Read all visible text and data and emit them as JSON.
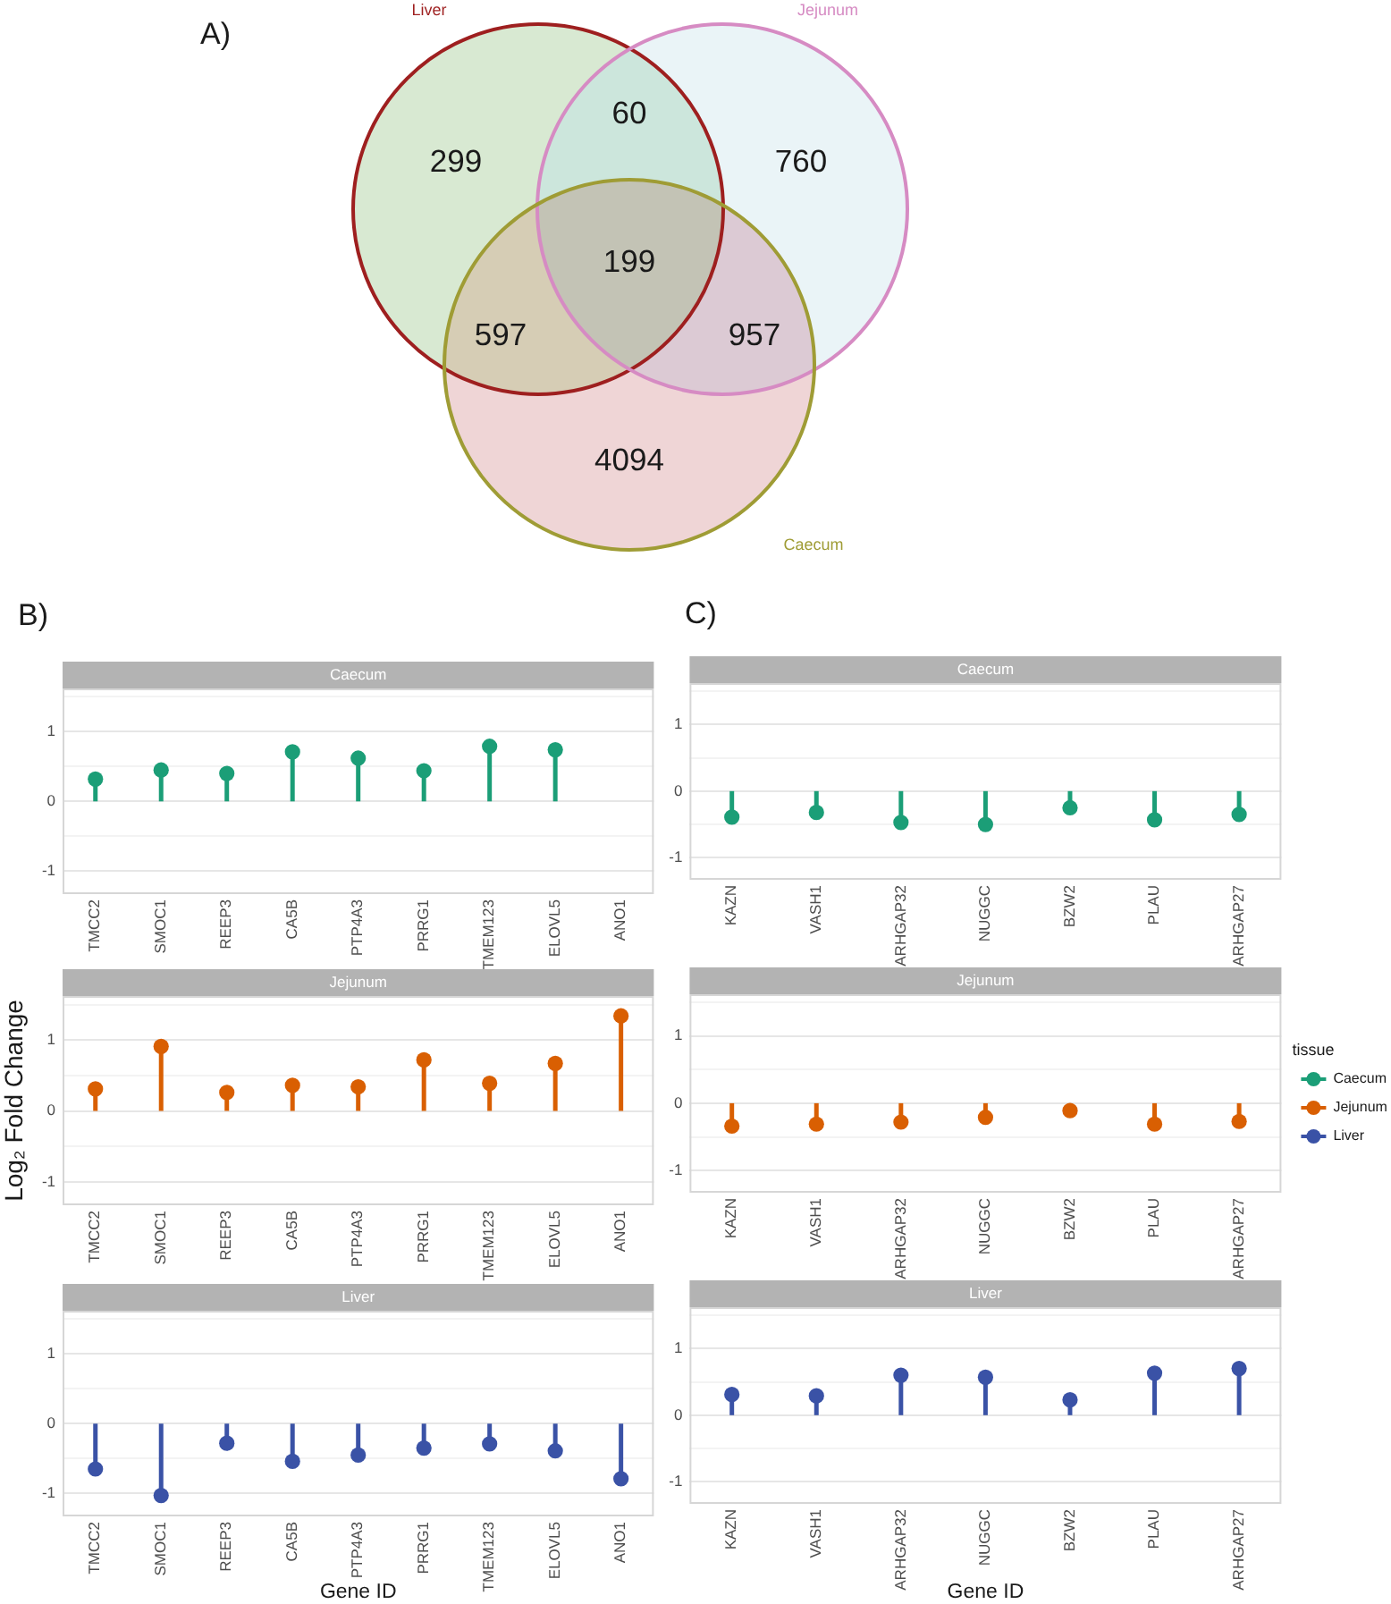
{
  "chart_data": [
    {
      "type": "other",
      "annotations": [
        "A)",
        "299",
        "60",
        "760",
        "199",
        "597",
        "957",
        "4094"
      ],
      "colors": [
        "#d8e9d2",
        "#cce6dc",
        "#eaf4f7",
        "#c3c3b5",
        "#d6cdb5",
        "#dccad4",
        "#efd5d6"
      ],
      "series": [
        {
          "name": "Liver",
          "color": "#9e1f1f"
        },
        {
          "name": "Jejunum",
          "color": "#d68bc3"
        },
        {
          "name": "Caecum",
          "color": "#9f9c35"
        }
      ]
    },
    {
      "type": "lollipop",
      "annotations": [
        "B)"
      ],
      "title": "Caecum",
      "categories": [
        "TMCC2",
        "SMOC1",
        "REEP3",
        "CA5B",
        "PTP4A3",
        "PRRG1",
        "TMEM123",
        "ELOVL5",
        "ANO1"
      ],
      "series": [
        {
          "color": "#1b9e77",
          "values": [
            0.32,
            0.45,
            0.4,
            0.71,
            0.62,
            0.44,
            0.79,
            0.74,
            null
          ]
        }
      ],
      "ylim": [
        -1.33,
        1.62
      ],
      "yticks": [
        -1,
        {
          "value": -0.5,
          "label": null
        },
        0,
        {
          "value": 0.5,
          "label": null
        },
        1,
        {
          "value": 1.5,
          "label": null
        }
      ],
      "grid": "y",
      "marker": "circle"
    },
    {
      "type": "lollipop",
      "title": "Jejunum",
      "ylabel": "Log₂ Fold Change",
      "categories": [
        "TMCC2",
        "SMOC1",
        "REEP3",
        "CA5B",
        "PTP4A3",
        "PRRG1",
        "TMEM123",
        "ELOVL5",
        "ANO1"
      ],
      "series": [
        {
          "color": "#d95f02",
          "values": [
            0.31,
            0.91,
            0.26,
            0.36,
            0.34,
            0.72,
            0.39,
            0.67,
            1.34
          ]
        }
      ],
      "ylim": [
        -1.33,
        1.62
      ],
      "yticks": [
        -1,
        {
          "value": -0.5,
          "label": null
        },
        0,
        {
          "value": 0.5,
          "label": null
        },
        1,
        {
          "value": 1.5,
          "label": null
        }
      ],
      "grid": "y",
      "marker": "circle"
    },
    {
      "type": "lollipop",
      "title": "Liver",
      "xlabel": "Gene ID",
      "categories": [
        "TMCC2",
        "SMOC1",
        "REEP3",
        "CA5B",
        "PTP4A3",
        "PRRG1",
        "TMEM123",
        "ELOVL5",
        "ANO1"
      ],
      "series": [
        {
          "color": "#3a52a6",
          "values": [
            -0.65,
            -1.03,
            -0.28,
            -0.54,
            -0.45,
            -0.35,
            -0.29,
            -0.39,
            -0.79
          ]
        }
      ],
      "ylim": [
        -1.33,
        1.62
      ],
      "yticks": [
        -1,
        {
          "value": -0.5,
          "label": null
        },
        0,
        {
          "value": 0.5,
          "label": null
        },
        1,
        {
          "value": 1.5,
          "label": null
        }
      ],
      "grid": "y",
      "marker": "circle"
    },
    {
      "type": "lollipop",
      "annotations": [
        "C)"
      ],
      "title": "Caecum",
      "categories": [
        "KAZN",
        "VASH1",
        "ARHGAP32",
        "NUGGC",
        "BZW2",
        "PLAU",
        "ARHGAP27"
      ],
      "series": [
        {
          "color": "#1b9e77",
          "values": [
            -0.39,
            -0.32,
            -0.47,
            -0.5,
            -0.25,
            -0.43,
            -0.35
          ]
        }
      ],
      "ylim": [
        -1.33,
        1.62
      ],
      "yticks": [
        -1,
        {
          "value": -0.5,
          "label": null
        },
        0,
        {
          "value": 0.5,
          "label": null
        },
        1,
        {
          "value": 1.5,
          "label": null
        }
      ],
      "grid": "y",
      "marker": "circle"
    },
    {
      "type": "lollipop",
      "title": "Jejunum",
      "legend": "right",
      "legend_title": "tissue",
      "categories": [
        "KAZN",
        "VASH1",
        "ARHGAP32",
        "NUGGC",
        "BZW2",
        "PLAU",
        "ARHGAP27"
      ],
      "series": [
        {
          "name": "Caecum",
          "color": "#1b9e77",
          "values": [
            null,
            null,
            null,
            null,
            null,
            null,
            null
          ]
        },
        {
          "name": "Jejunum",
          "color": "#d95f02",
          "values": [
            -0.34,
            -0.31,
            -0.28,
            -0.21,
            -0.11,
            -0.31,
            -0.27
          ]
        },
        {
          "name": "Liver",
          "color": "#3a52a6",
          "values": [
            null,
            null,
            null,
            null,
            null,
            null,
            null
          ]
        }
      ],
      "ylim": [
        -1.33,
        1.62
      ],
      "yticks": [
        -1,
        {
          "value": -0.5,
          "label": null
        },
        0,
        {
          "value": 0.5,
          "label": null
        },
        1,
        {
          "value": 1.5,
          "label": null
        }
      ],
      "grid": "y",
      "marker": "circle"
    },
    {
      "type": "lollipop",
      "title": "Liver",
      "xlabel": "Gene ID",
      "categories": [
        "KAZN",
        "VASH1",
        "ARHGAP32",
        "NUGGC",
        "BZW2",
        "PLAU",
        "ARHGAP27"
      ],
      "series": [
        {
          "color": "#3a52a6",
          "values": [
            0.31,
            0.29,
            0.6,
            0.57,
            0.23,
            0.63,
            0.7
          ]
        }
      ],
      "ylim": [
        -1.33,
        1.62
      ],
      "yticks": [
        -1,
        {
          "value": -0.5,
          "label": null
        },
        0,
        {
          "value": 0.5,
          "label": null
        },
        1,
        {
          "value": 1.5,
          "label": null
        }
      ],
      "grid": "y",
      "marker": "circle"
    }
  ]
}
